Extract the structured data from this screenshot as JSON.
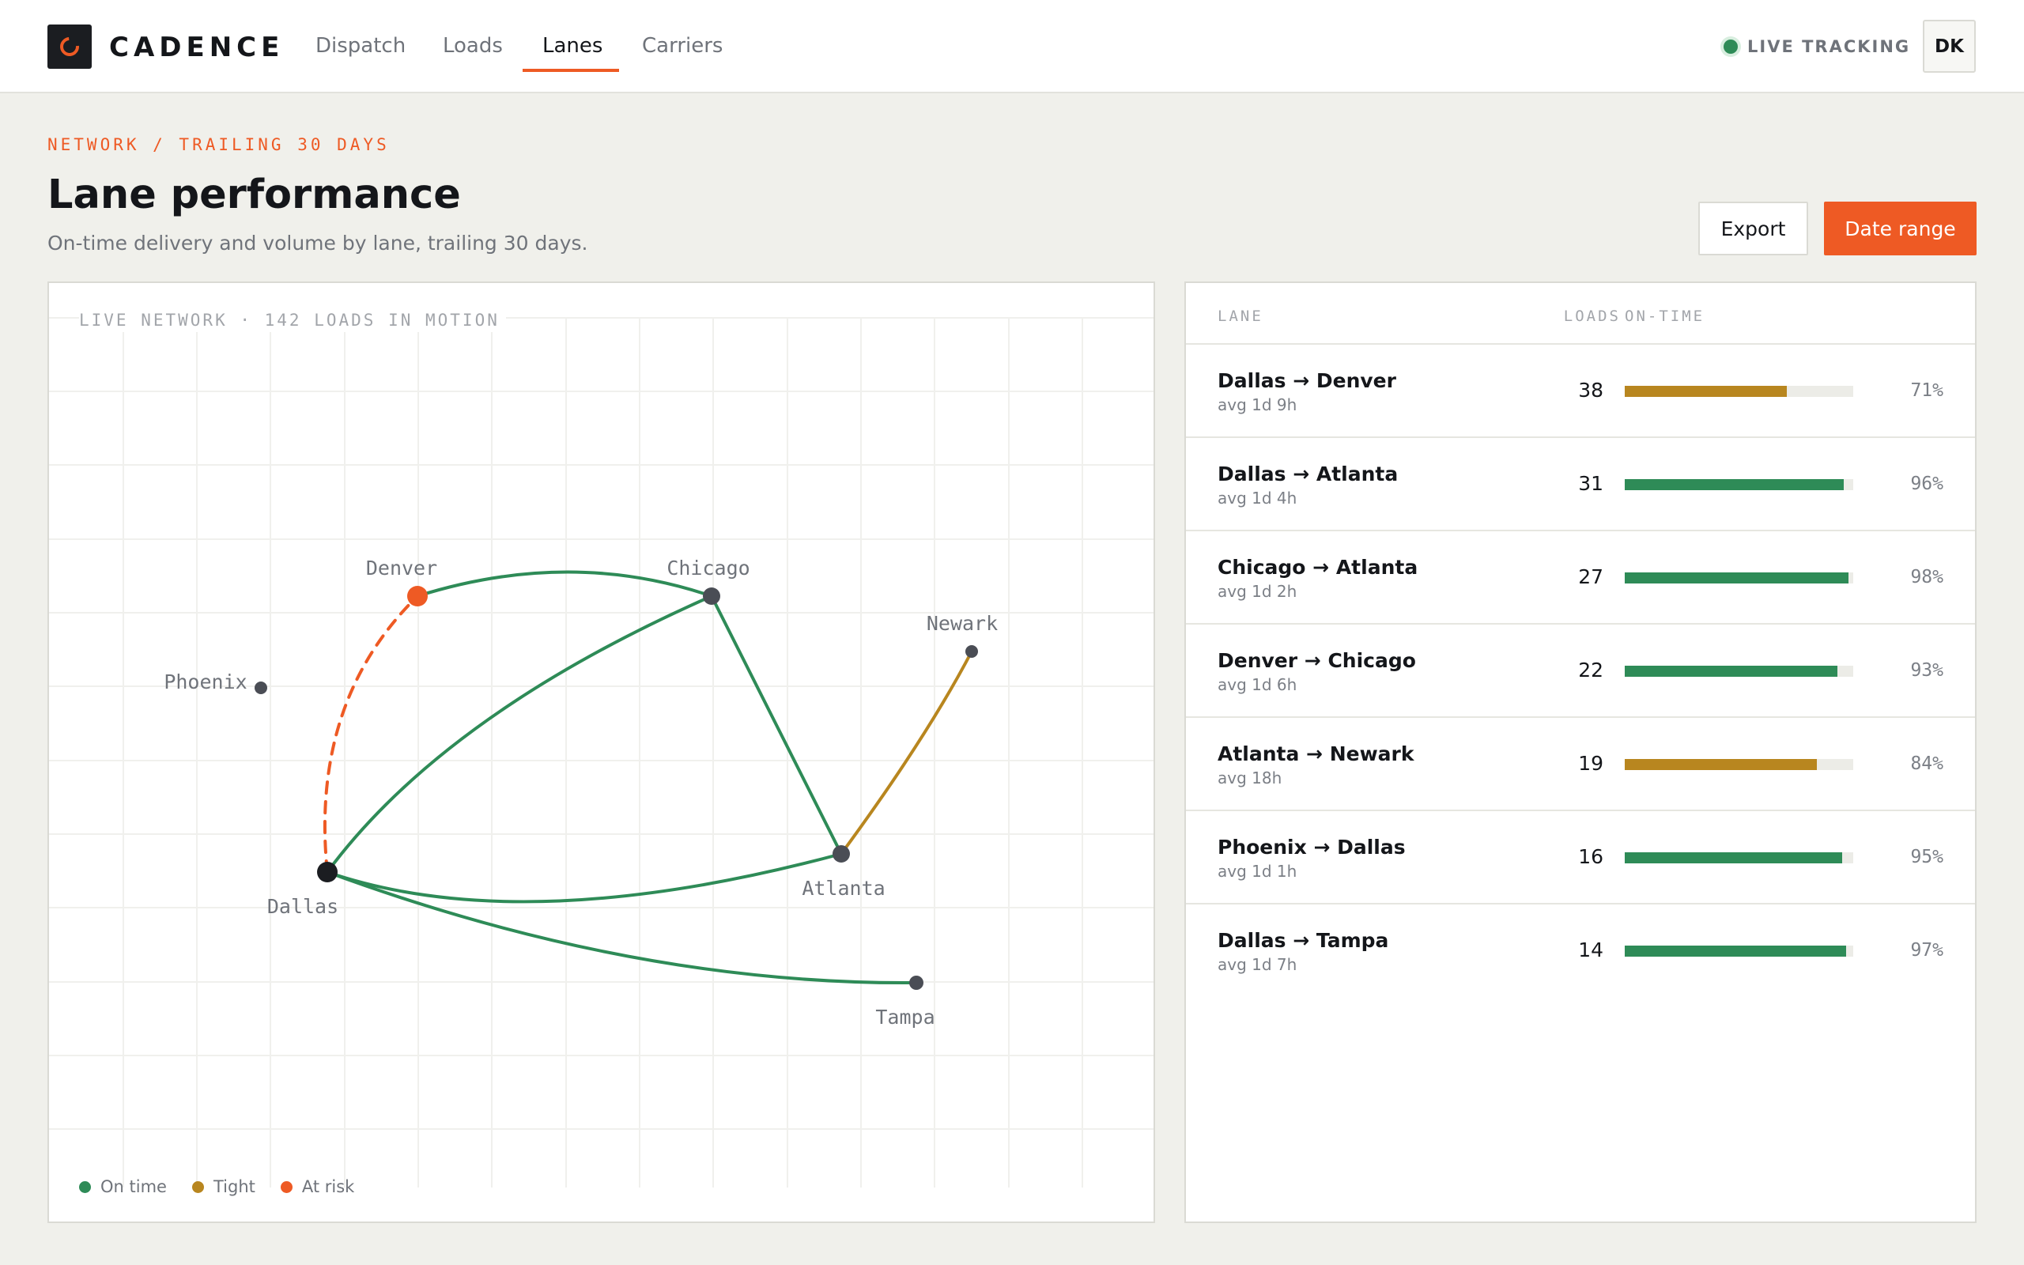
{
  "app": {
    "brand": "CADENCE"
  },
  "nav": {
    "items": [
      {
        "label": "Dispatch"
      },
      {
        "label": "Loads"
      },
      {
        "label": "Lanes",
        "active": true
      },
      {
        "label": "Carriers"
      }
    ]
  },
  "header": {
    "live_label": "LIVE TRACKING",
    "avatar_initials": "DK"
  },
  "page": {
    "eyebrow": "NETWORK / TRAILING 30 DAYS",
    "title": "Lane performance",
    "subtitle": "On-time delivery and volume by lane, trailing 30 days.",
    "export_label": "Export",
    "date_range_label": "Date range"
  },
  "map": {
    "caption": "LIVE NETWORK · 142 LOADS IN MOTION",
    "cities": [
      "Denver",
      "Chicago",
      "Newark",
      "Phoenix",
      "Dallas",
      "Atlanta",
      "Tampa"
    ],
    "routes": [
      {
        "from": "Denver",
        "to": "Chicago",
        "status": "on-time"
      },
      {
        "from": "Dallas",
        "to": "Denver",
        "status": "at-risk"
      },
      {
        "from": "Dallas",
        "to": "Chicago",
        "status": "on-time"
      },
      {
        "from": "Chicago",
        "to": "Atlanta",
        "status": "on-time"
      },
      {
        "from": "Atlanta",
        "to": "Newark",
        "status": "tight"
      },
      {
        "from": "Dallas",
        "to": "Atlanta",
        "status": "on-time"
      },
      {
        "from": "Dallas",
        "to": "Tampa",
        "status": "on-time"
      }
    ],
    "legend": [
      {
        "label": "On time",
        "color": "#2e8b57"
      },
      {
        "label": "Tight",
        "color": "#b8861f"
      },
      {
        "label": "At risk",
        "color": "#ee5a24"
      }
    ]
  },
  "table": {
    "headers": {
      "lane": "LANE",
      "loads": "LOADS",
      "on_time": "ON-TIME"
    },
    "rows": [
      {
        "lane": "Dallas → Denver",
        "avg": "avg 1d 9h",
        "loads": "38",
        "pct": "71%",
        "value": 0.71,
        "color": "#b8861f"
      },
      {
        "lane": "Dallas → Atlanta",
        "avg": "avg 1d 4h",
        "loads": "31",
        "pct": "96%",
        "value": 0.96,
        "color": "#2e8b57"
      },
      {
        "lane": "Chicago → Atlanta",
        "avg": "avg 1d 2h",
        "loads": "27",
        "pct": "98%",
        "value": 0.98,
        "color": "#2e8b57"
      },
      {
        "lane": "Denver → Chicago",
        "avg": "avg 1d 6h",
        "loads": "22",
        "pct": "93%",
        "value": 0.93,
        "color": "#2e8b57"
      },
      {
        "lane": "Atlanta → Newark",
        "avg": "avg 18h",
        "loads": "19",
        "pct": "84%",
        "value": 0.84,
        "color": "#b8861f"
      },
      {
        "lane": "Phoenix → Dallas",
        "avg": "avg 1d 1h",
        "loads": "16",
        "pct": "95%",
        "value": 0.95,
        "color": "#2e8b57"
      },
      {
        "lane": "Dallas → Tampa",
        "avg": "avg 1d 7h",
        "loads": "14",
        "pct": "97%",
        "value": 0.97,
        "color": "#2e8b57"
      }
    ]
  }
}
